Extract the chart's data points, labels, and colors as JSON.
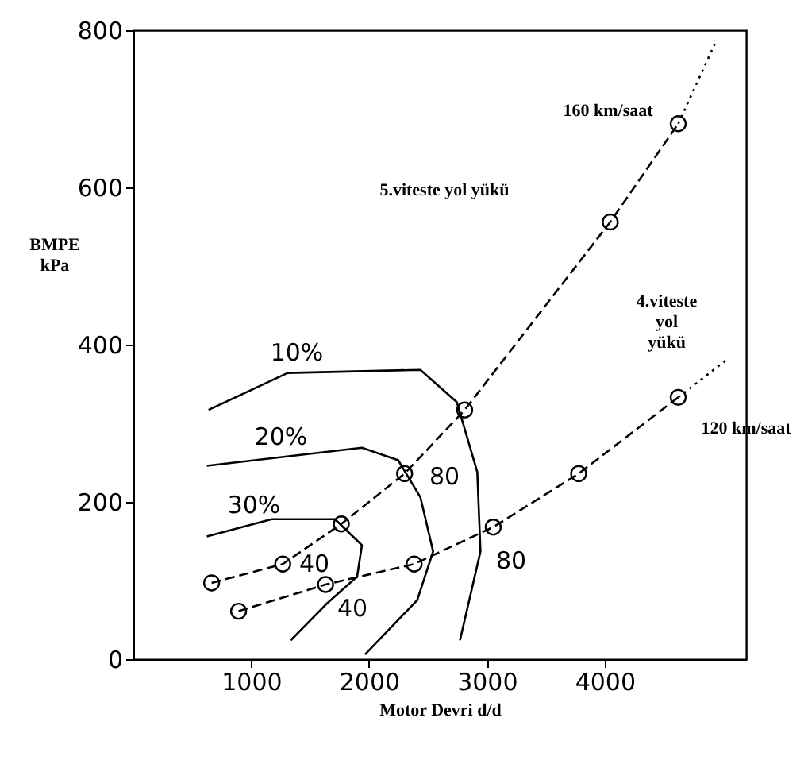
{
  "chart_data": {
    "type": "line",
    "xlabel": "Motor Devri  d/d",
    "ylabel": "BMPE\nkPa",
    "xlim": [
      0,
      5200
    ],
    "ylim": [
      0,
      800
    ],
    "xticks": [
      1000,
      2000,
      3000,
      4000
    ],
    "yticks": [
      0,
      200,
      400,
      600,
      800
    ],
    "grid": false,
    "series": [
      {
        "color": "#000000",
        "line_style": "dashed",
        "marker": "circle",
        "x": [
          893,
          1631,
          2383,
          3054,
          3779,
          4624
        ],
        "values": [
          61,
          95,
          121,
          168,
          236,
          333
        ]
      },
      {
        "color": "#000000",
        "line_style": "dotted",
        "marker": "none",
        "x": [
          4624,
          5027
        ],
        "values": [
          333,
          380
        ]
      },
      {
        "color": "#000000",
        "line_style": "dashed",
        "marker": "circle",
        "x": [
          664,
          1268,
          1765,
          2302,
          2812,
          4047,
          4624
        ],
        "values": [
          97,
          121,
          172,
          236,
          317,
          556,
          681
        ]
      },
      {
        "color": "#000000",
        "line_style": "dotted",
        "marker": "none",
        "x": [
          4624,
          4933
        ],
        "values": [
          681,
          782
        ]
      },
      {
        "color": "#000000",
        "line_style": "solid",
        "marker": "none",
        "x": [
          638,
          1309,
          2436,
          2745,
          2919,
          2946,
          2772
        ],
        "values": [
          317,
          364,
          368,
          327,
          238,
          137,
          24
        ]
      },
      {
        "color": "#000000",
        "line_style": "solid",
        "marker": "none",
        "x": [
          624,
          1940,
          2248,
          2436,
          2544,
          2409,
          1966
        ],
        "values": [
          246,
          269,
          253,
          206,
          137,
          75,
          6
        ]
      },
      {
        "color": "#000000",
        "line_style": "solid",
        "marker": "none",
        "x": [
          624,
          1174,
          1711,
          1940,
          1899,
          1644,
          1336
        ],
        "values": [
          156,
          178,
          178,
          145,
          105,
          71,
          24
        ]
      }
    ],
    "annotations": [
      "10%",
      "20%",
      "30%",
      "40",
      "40",
      "80",
      "80",
      "160 km/saat",
      "5.viteste yol yükü",
      "4.viteste\nyol\nyükü",
      "120 km/saat"
    ]
  }
}
